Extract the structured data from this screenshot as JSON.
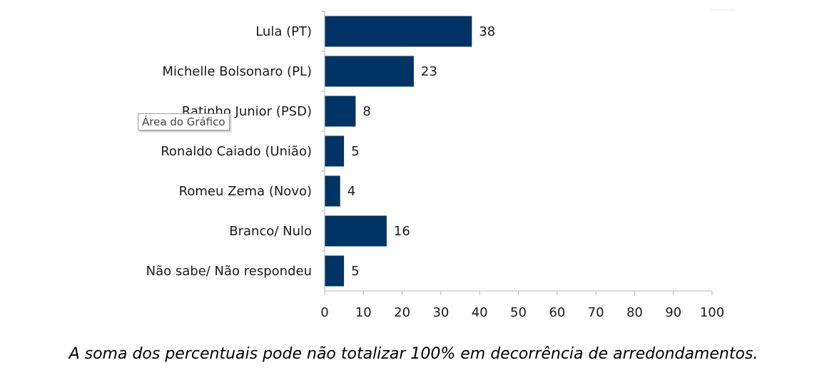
{
  "chart_data": {
    "type": "bar",
    "orientation": "horizontal",
    "categories": [
      "Lula (PT)",
      "Michelle Bolsonaro (PL)",
      "Ratinho Junior (PSD)",
      "Ronaldo Caiado (União)",
      "Romeu Zema (Novo)",
      "Branco/ Nulo",
      "Não sabe/ Não respondeu"
    ],
    "values": [
      38,
      23,
      8,
      5,
      4,
      16,
      5
    ],
    "xlim": [
      0,
      100
    ],
    "xticks": [
      0,
      10,
      20,
      30,
      40,
      50,
      60,
      70,
      80,
      90,
      100
    ],
    "grid": false,
    "legend": "none",
    "bar_color": "#003366"
  },
  "tooltip": {
    "text": "Área do Gráfico"
  },
  "footnote": "A soma dos percentuais pode não totalizar 100% em decorrência de arredondamentos."
}
